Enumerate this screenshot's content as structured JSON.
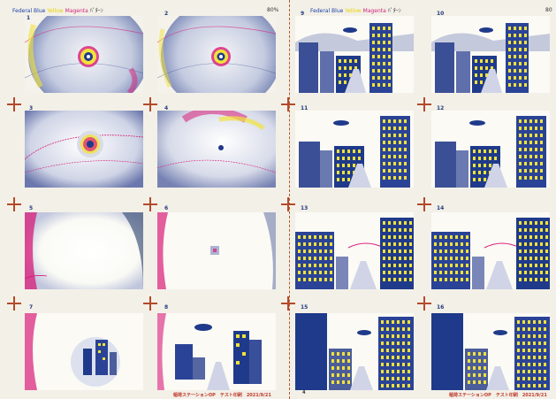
{
  "header": {
    "left": {
      "federal_blue": "Federal Blue",
      "yellow": "Yellow",
      "magenta": "Magenta",
      "note": "ﾊﾟﾀｰﾝ"
    },
    "right": {
      "federal_blue": "Federal Blue",
      "yellow": "Yellow",
      "magenta": "Magenta",
      "note": "ﾊﾟﾀｰﾝ"
    },
    "zoom_left": "80%",
    "zoom_right": "80"
  },
  "thumbnails": {
    "left": [
      "1",
      "2",
      "3",
      "4",
      "5",
      "6",
      "7",
      "8"
    ],
    "right": [
      "9",
      "10",
      "11",
      "12",
      "13",
      "14",
      "15",
      "16"
    ]
  },
  "footer": {
    "left": "稲荷ステーションOP　テスト印刷　2021/9/21",
    "right": "稲荷ステーションOP　テスト印刷　2021/9/21",
    "page_mark": "4"
  },
  "colors": {
    "federal_blue": "#1f3a8a",
    "yellow": "#f2e23a",
    "magenta": "#d81b78",
    "paper": "#f3f0e8"
  }
}
